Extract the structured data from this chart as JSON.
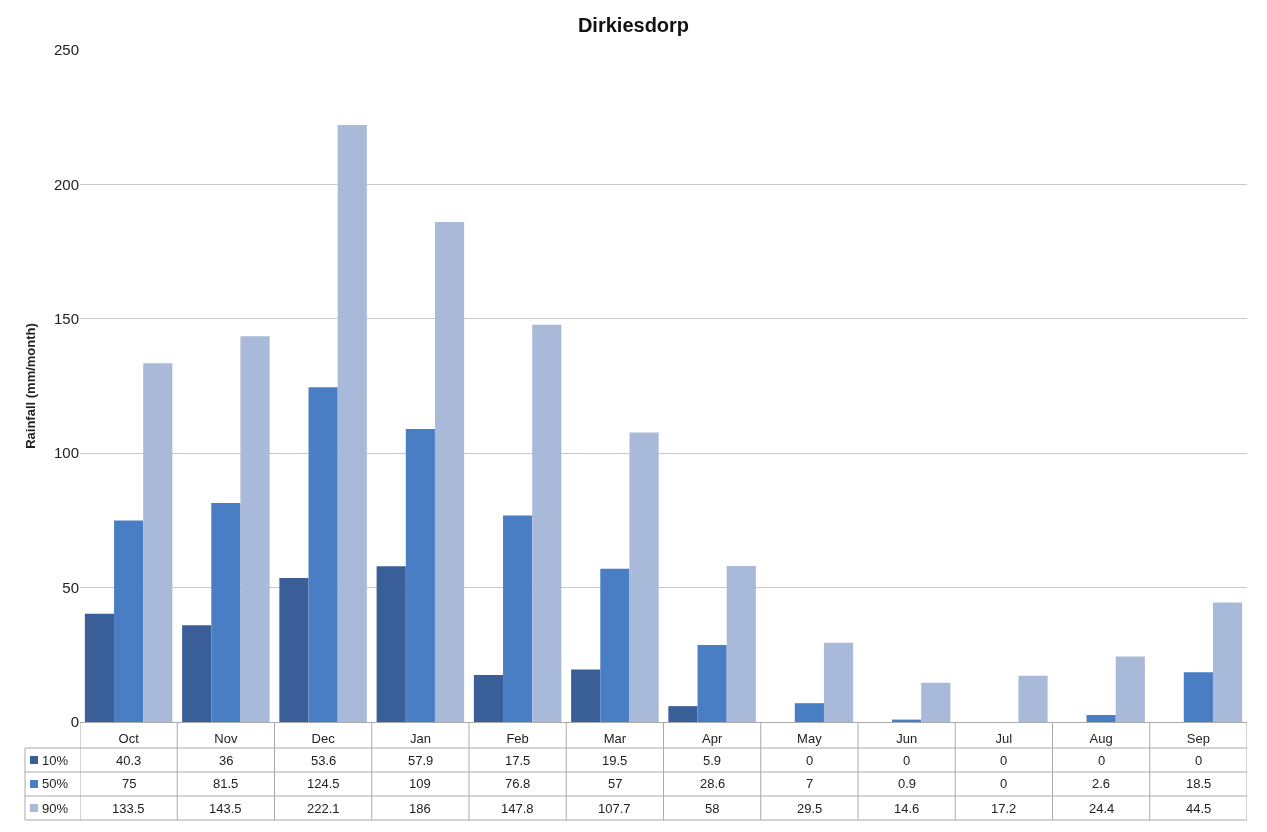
{
  "chart_data": {
    "type": "bar",
    "title": "Dirkiesdorp",
    "ylabel": "Rainfall (mm/month)",
    "categories": [
      "Oct",
      "Nov",
      "Dec",
      "Jan",
      "Feb",
      "Mar",
      "Apr",
      "May",
      "Jun",
      "Jul",
      "Aug",
      "Sep"
    ],
    "series": [
      {
        "name": "10%",
        "color": "#3a5f98",
        "values": [
          40.3,
          36,
          53.6,
          57.9,
          17.5,
          19.5,
          5.9,
          0,
          0,
          0,
          0,
          0
        ]
      },
      {
        "name": "50%",
        "color": "#4a7ec4",
        "values": [
          75,
          81.5,
          124.5,
          109,
          76.8,
          57,
          28.6,
          7,
          0.9,
          0,
          2.6,
          18.5
        ]
      },
      {
        "name": "90%",
        "color": "#a9b9d9",
        "values": [
          133.5,
          143.5,
          222.1,
          186,
          147.8,
          107.7,
          58,
          29.5,
          14.6,
          17.2,
          24.4,
          44.5
        ]
      }
    ],
    "ylim": [
      0,
      250
    ],
    "yticks": [
      0,
      50,
      100,
      150,
      200,
      250
    ],
    "grid": "y",
    "data_labels": true,
    "legend": "bottom left"
  }
}
